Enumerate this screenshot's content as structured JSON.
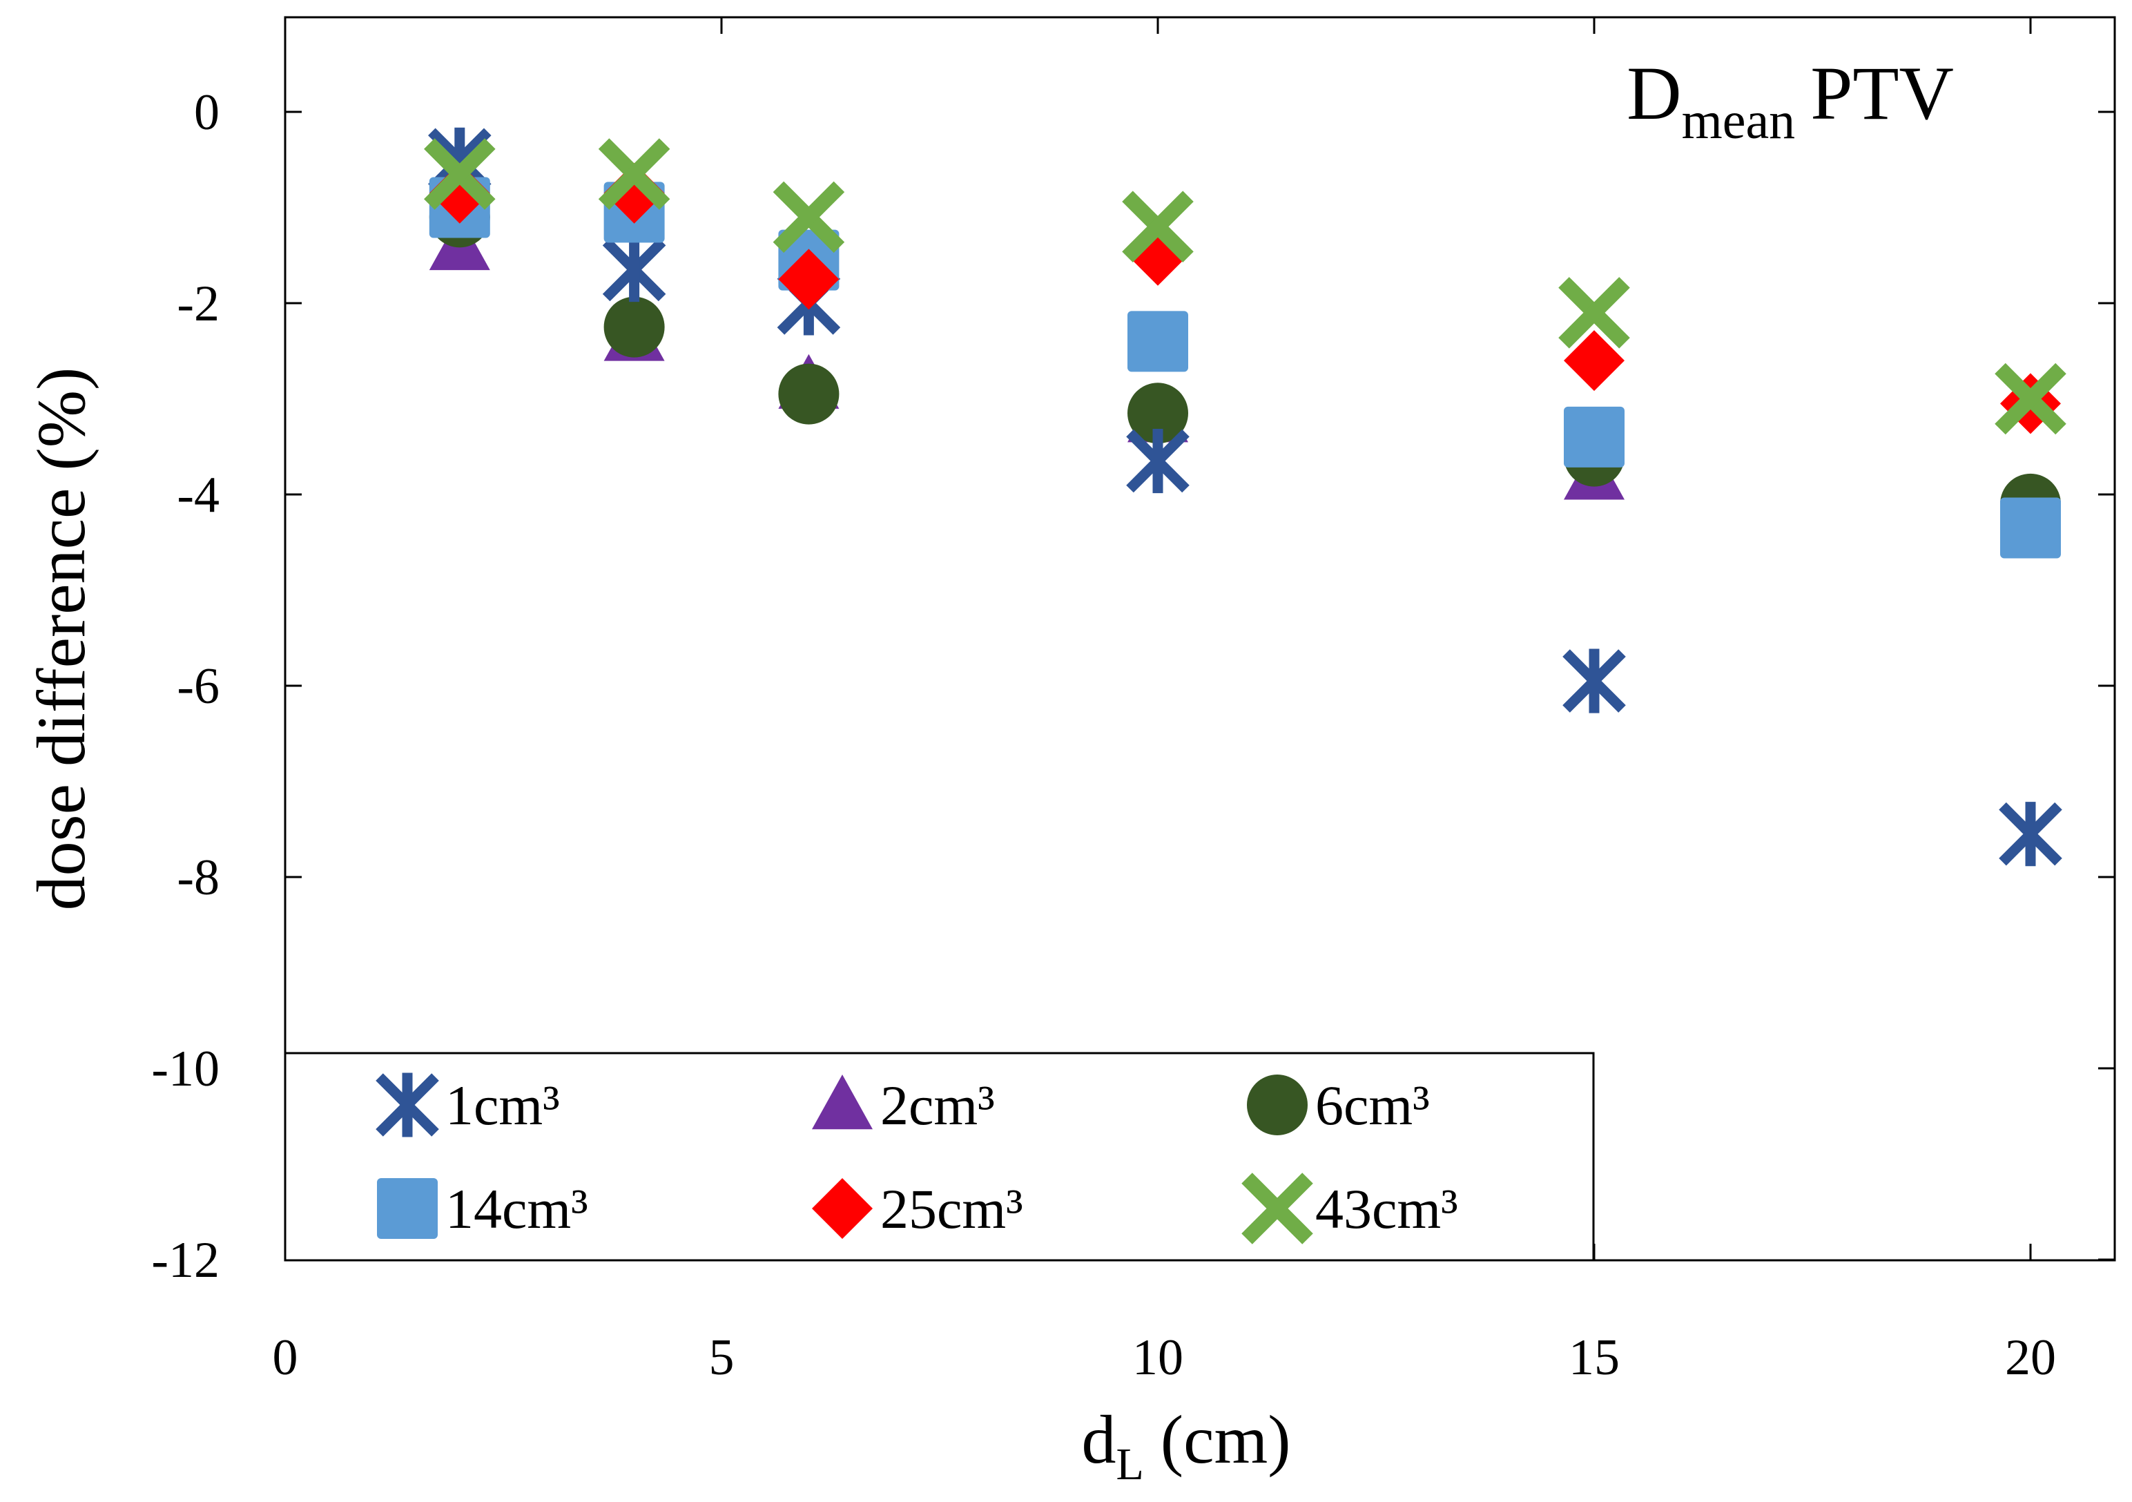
{
  "chart_data": {
    "type": "scatter",
    "title": "",
    "annotation": {
      "main": "D",
      "sub": "mean",
      "rest": "PTV"
    },
    "xlabel": {
      "main": "d",
      "sub": "L",
      "rest": "(cm)"
    },
    "ylabel": "dose difference (%)",
    "xlim": [
      0,
      21
    ],
    "ylim": [
      -12,
      1
    ],
    "xticks": [
      0,
      5,
      10,
      15,
      20
    ],
    "yticks": [
      0,
      -2,
      -4,
      -6,
      -8,
      -10,
      -12
    ],
    "x": [
      2,
      4,
      6,
      10,
      15,
      20
    ],
    "grid": false,
    "legend_position": "bottom-left",
    "series": [
      {
        "name": "1cm³",
        "marker": "asterisk",
        "color": "#2F5496",
        "values": [
          -0.5,
          -1.65,
          -2.0,
          -3.65,
          -5.95,
          -7.55
        ]
      },
      {
        "name": "2cm³",
        "marker": "triangle",
        "color": "#7030A0",
        "values": [
          -1.4,
          -2.35,
          -2.85,
          -3.2,
          -3.8,
          -4.15
        ]
      },
      {
        "name": "6cm³",
        "marker": "circle",
        "color": "#375623",
        "values": [
          -1.1,
          -2.25,
          -2.95,
          -3.15,
          -3.6,
          -4.1
        ]
      },
      {
        "name": "14cm³",
        "marker": "square",
        "color": "#5B9BD5",
        "values": [
          -1.0,
          -1.05,
          -1.55,
          -2.4,
          -3.4,
          -4.35
        ]
      },
      {
        "name": "25cm³",
        "marker": "diamond",
        "color": "#FF0000",
        "values": [
          -0.85,
          -0.85,
          -1.75,
          -1.5,
          -2.6,
          -3.05
        ]
      },
      {
        "name": "43cm³",
        "marker": "x",
        "color": "#70AD47",
        "values": [
          -0.65,
          -0.65,
          -1.1,
          -1.2,
          -2.1,
          -3.0
        ]
      }
    ]
  }
}
